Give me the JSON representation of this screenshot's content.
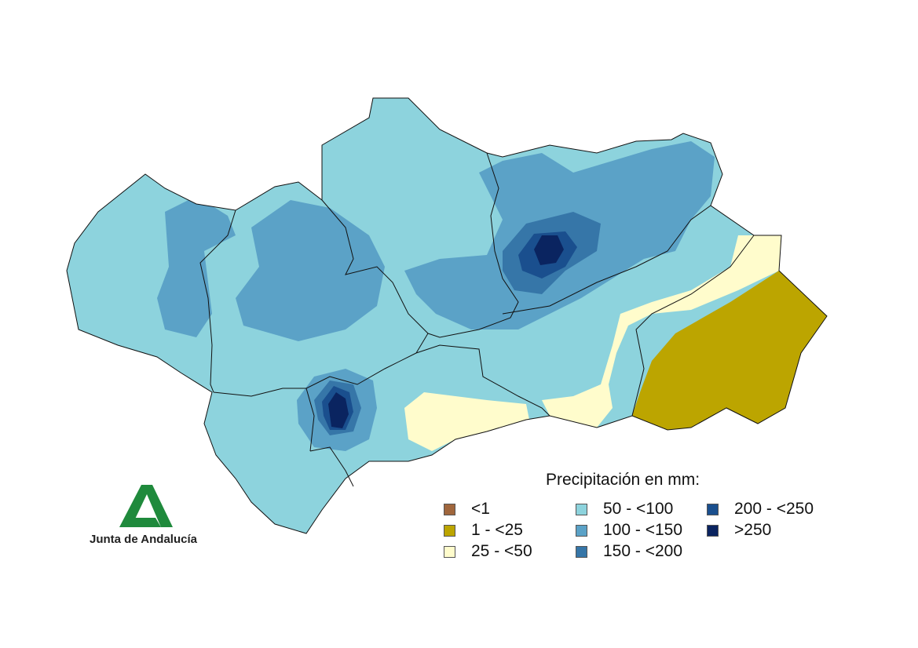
{
  "legend": {
    "title": "Precipitación en mm:",
    "items": [
      {
        "label": "<1",
        "color": "#a0663c"
      },
      {
        "label": "1 - <25",
        "color": "#bca500"
      },
      {
        "label": "25 - <50",
        "color": "#fffccc"
      },
      {
        "label": "50 - <100",
        "color": "#8dd3dd"
      },
      {
        "label": "100 - <150",
        "color": "#5ba2c7"
      },
      {
        "label": "150 - <200",
        "color": "#3676a8"
      },
      {
        "label": "200 - <250",
        "color": "#1a4f8e"
      },
      {
        "label": ">250",
        "color": "#0a2460"
      }
    ]
  },
  "logo": {
    "text": "Junta de Andalucía",
    "color": "#1f8a3c"
  }
}
